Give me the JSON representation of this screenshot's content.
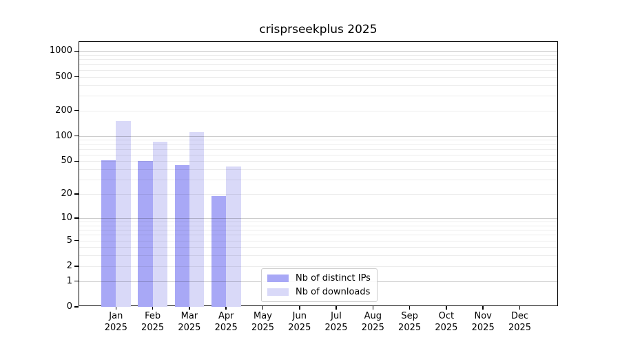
{
  "chart_data": {
    "type": "bar",
    "title": "crisprseekplus 2025",
    "x_months": [
      "Jan",
      "Feb",
      "Mar",
      "Apr",
      "May",
      "Jun",
      "Jul",
      "Aug",
      "Sep",
      "Oct",
      "Nov",
      "Dec"
    ],
    "x_year": "2025",
    "series": [
      {
        "name": "Nb of distinct IPs",
        "color": "#a8a8f6",
        "values": [
          51,
          50,
          45,
          19,
          0,
          0,
          0,
          0,
          0,
          0,
          0,
          0
        ]
      },
      {
        "name": "Nb of downloads",
        "color": "#d9d9f8",
        "values": [
          150,
          85,
          111,
          43,
          0,
          0,
          0,
          0,
          0,
          0,
          0,
          0
        ]
      }
    ],
    "y_axis": {
      "scale": "log1p",
      "tick_values": [
        0,
        1,
        2,
        5,
        10,
        20,
        50,
        100,
        200,
        500,
        1000
      ],
      "tick_labels": [
        "0",
        "1",
        "2",
        "5",
        "10",
        "20",
        "50",
        "100",
        "200",
        "500",
        "1000"
      ],
      "axis_max": 1280,
      "major_grid_values": [
        1,
        10,
        100,
        1000
      ]
    },
    "legend": {
      "location": "lower center",
      "entries": [
        "Nb of distinct IPs",
        "Nb of downloads"
      ]
    },
    "grid": true,
    "xlabel": "",
    "ylabel": ""
  },
  "colors": {
    "background": "#ffffff",
    "bar_distinct_ips": "#a8a8f6",
    "bar_downloads": "#d9d9f8",
    "spine": "#000000",
    "text": "#000000",
    "legend_border": "#cccccc"
  }
}
